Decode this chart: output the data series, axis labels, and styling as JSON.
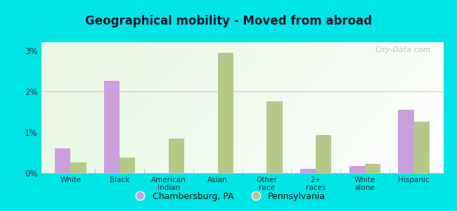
{
  "title": "Geographical mobility - Moved from abroad",
  "categories": [
    "White",
    "Black",
    "American\nIndian",
    "Asian",
    "Other\nrace",
    "2+\nraces",
    "White\nalone",
    "Hispanic"
  ],
  "chambersburg": [
    0.6,
    2.25,
    0.0,
    0.0,
    0.0,
    0.1,
    0.18,
    1.55
  ],
  "pennsylvania": [
    0.25,
    0.38,
    0.85,
    2.95,
    1.75,
    0.93,
    0.22,
    1.25
  ],
  "chambersburg_color": "#c9a0dc",
  "pennsylvania_color": "#b5c98a",
  "outer_background": "#00e5e5",
  "ylim": [
    0,
    3.2
  ],
  "yticks": [
    0,
    1,
    2,
    3
  ],
  "ytick_labels": [
    "0%",
    "1%",
    "2%",
    "3%"
  ],
  "bar_width": 0.32,
  "legend_chambersburg": "Chambersburg, PA",
  "legend_pennsylvania": "Pennsylvania",
  "watermark": "City-Data.com"
}
